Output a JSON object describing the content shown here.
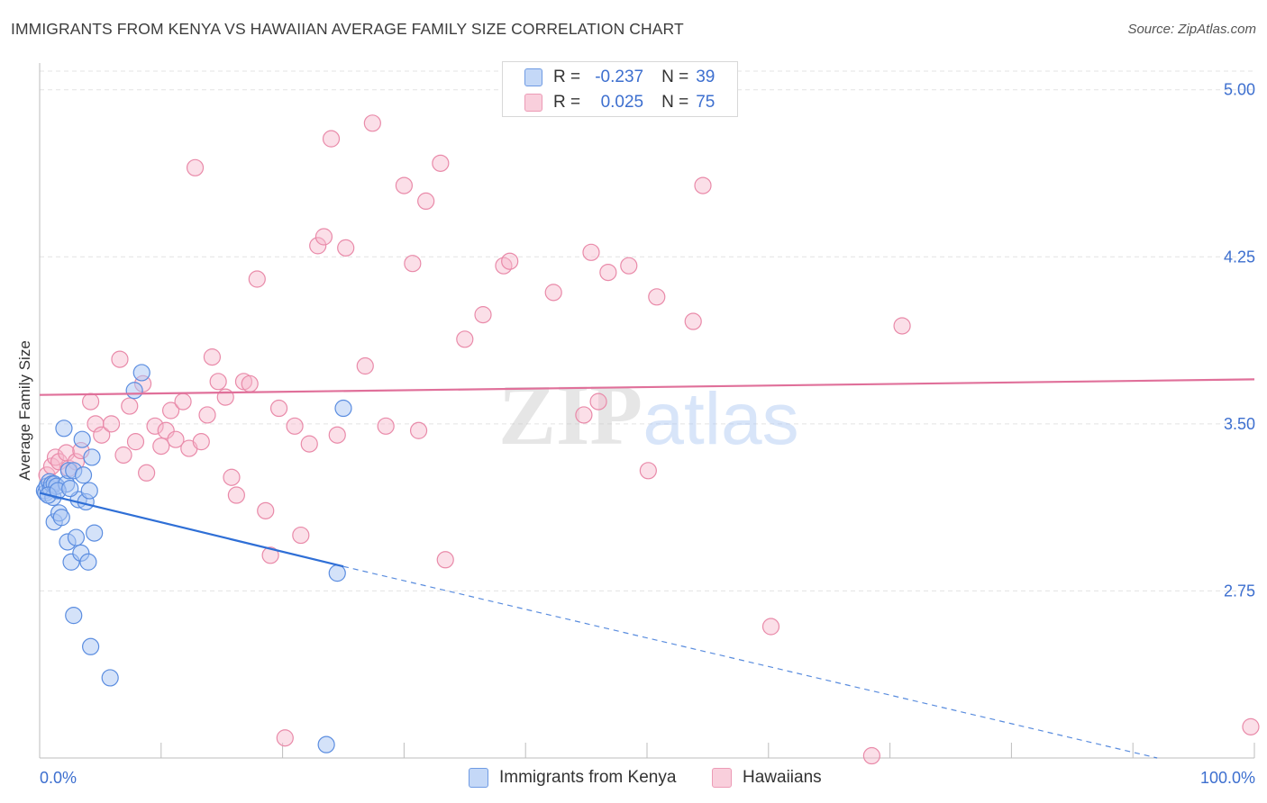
{
  "header": {
    "title": "IMMIGRANTS FROM KENYA VS HAWAIIAN AVERAGE FAMILY SIZE CORRELATION CHART",
    "source": "Source: ZipAtlas.com"
  },
  "watermark": {
    "zip": "ZIP",
    "atlas": "atlas"
  },
  "colors": {
    "kenya_fill": "#a9c6f3",
    "kenya_stroke": "#5b8de0",
    "kenya_line": "#2f6fd6",
    "hawaiian_fill": "#f6b8cc",
    "hawaiian_stroke": "#e98aa9",
    "hawaiian_line": "#e0709a",
    "tick_label": "#3d6fcf",
    "grid": "#e3e3e3"
  },
  "legend_top": {
    "rows": [
      {
        "r_label": "R =",
        "r_value": "-0.237",
        "n_label": "N =",
        "n_value": "39"
      },
      {
        "r_label": "R =",
        "r_value": "0.025",
        "n_label": "N =",
        "n_value": "75"
      }
    ]
  },
  "legend_bottom": {
    "items": [
      {
        "label": "Immigrants from Kenya"
      },
      {
        "label": "Hawaiians"
      }
    ]
  },
  "chart_data": {
    "type": "scatter",
    "title": "IMMIGRANTS FROM KENYA VS HAWAIIAN AVERAGE FAMILY SIZE CORRELATION CHART",
    "xlabel": "",
    "ylabel": "Average Family Size",
    "xlim": [
      0,
      100
    ],
    "ylim": [
      2.0,
      5.12
    ],
    "x_tick_labels": [
      "0.0%",
      "100.0%"
    ],
    "y_ticks": [
      2.75,
      3.5,
      4.25,
      5.0
    ],
    "y_tick_labels": [
      "2.75",
      "3.50",
      "4.25",
      "5.00"
    ],
    "grid": true,
    "legend_position": "top-center",
    "series": [
      {
        "name": "Immigrants from Kenya",
        "r": -0.237,
        "n": 39,
        "trend": {
          "x0": 0,
          "y0": 3.19,
          "x1": 25,
          "y1": 2.86,
          "dash_to_x": 92,
          "dash_to_y": 2.0
        },
        "points": [
          [
            0.4,
            3.2
          ],
          [
            0.5,
            3.19
          ],
          [
            0.6,
            3.22
          ],
          [
            0.8,
            3.24
          ],
          [
            0.9,
            3.21
          ],
          [
            1.0,
            3.23
          ],
          [
            1.1,
            3.17
          ],
          [
            1.2,
            3.23
          ],
          [
            1.2,
            3.06
          ],
          [
            1.4,
            3.22
          ],
          [
            1.6,
            3.1
          ],
          [
            1.8,
            3.08
          ],
          [
            2.0,
            3.48
          ],
          [
            2.2,
            3.23
          ],
          [
            2.3,
            2.97
          ],
          [
            2.4,
            3.29
          ],
          [
            2.6,
            2.88
          ],
          [
            2.8,
            3.29
          ],
          [
            2.8,
            2.64
          ],
          [
            3.0,
            2.99
          ],
          [
            3.2,
            3.16
          ],
          [
            3.4,
            2.92
          ],
          [
            3.5,
            3.43
          ],
          [
            3.6,
            3.27
          ],
          [
            3.8,
            3.15
          ],
          [
            4.1,
            3.2
          ],
          [
            4.3,
            3.35
          ],
          [
            4.2,
            2.5
          ],
          [
            4.0,
            2.88
          ],
          [
            4.5,
            3.01
          ],
          [
            5.8,
            2.36
          ],
          [
            7.8,
            3.65
          ],
          [
            8.4,
            3.73
          ],
          [
            24.5,
            2.83
          ],
          [
            25.0,
            3.57
          ],
          [
            23.6,
            2.06
          ],
          [
            0.7,
            3.18
          ],
          [
            1.5,
            3.2
          ],
          [
            2.5,
            3.21
          ]
        ]
      },
      {
        "name": "Hawaiians",
        "r": 0.025,
        "n": 75,
        "trend": {
          "x0": 0,
          "y0": 3.63,
          "x1": 100,
          "y1": 3.7
        },
        "points": [
          [
            0.6,
            3.27
          ],
          [
            1.0,
            3.31
          ],
          [
            1.3,
            3.35
          ],
          [
            1.6,
            3.33
          ],
          [
            2.2,
            3.37
          ],
          [
            2.4,
            3.3
          ],
          [
            3.0,
            3.33
          ],
          [
            3.4,
            3.38
          ],
          [
            4.2,
            3.6
          ],
          [
            4.6,
            3.5
          ],
          [
            5.1,
            3.45
          ],
          [
            5.9,
            3.5
          ],
          [
            6.6,
            3.79
          ],
          [
            6.9,
            3.36
          ],
          [
            7.4,
            3.58
          ],
          [
            7.9,
            3.42
          ],
          [
            8.5,
            3.68
          ],
          [
            8.8,
            3.28
          ],
          [
            9.5,
            3.49
          ],
          [
            10.0,
            3.4
          ],
          [
            10.4,
            3.47
          ],
          [
            10.8,
            3.56
          ],
          [
            11.2,
            3.43
          ],
          [
            11.8,
            3.6
          ],
          [
            12.3,
            3.39
          ],
          [
            12.8,
            4.65
          ],
          [
            13.3,
            3.42
          ],
          [
            13.8,
            3.54
          ],
          [
            14.2,
            3.8
          ],
          [
            14.7,
            3.69
          ],
          [
            15.3,
            3.62
          ],
          [
            15.8,
            3.26
          ],
          [
            16.2,
            3.18
          ],
          [
            16.8,
            3.69
          ],
          [
            17.3,
            3.68
          ],
          [
            17.9,
            4.15
          ],
          [
            18.6,
            3.11
          ],
          [
            19.0,
            2.91
          ],
          [
            19.7,
            3.57
          ],
          [
            20.2,
            2.09
          ],
          [
            21.0,
            3.49
          ],
          [
            21.5,
            3.0
          ],
          [
            22.2,
            3.41
          ],
          [
            22.9,
            4.3
          ],
          [
            23.4,
            4.34
          ],
          [
            24.0,
            4.78
          ],
          [
            24.5,
            3.45
          ],
          [
            25.2,
            4.29
          ],
          [
            26.8,
            3.76
          ],
          [
            27.4,
            4.85
          ],
          [
            28.5,
            3.49
          ],
          [
            30.0,
            4.57
          ],
          [
            30.7,
            4.22
          ],
          [
            31.2,
            3.47
          ],
          [
            31.8,
            4.5
          ],
          [
            33.0,
            4.67
          ],
          [
            33.4,
            2.89
          ],
          [
            35.0,
            3.88
          ],
          [
            36.5,
            3.99
          ],
          [
            38.2,
            4.21
          ],
          [
            38.7,
            4.23
          ],
          [
            42.3,
            4.09
          ],
          [
            44.8,
            3.54
          ],
          [
            45.4,
            4.27
          ],
          [
            46.8,
            4.18
          ],
          [
            48.5,
            4.21
          ],
          [
            50.1,
            3.29
          ],
          [
            50.8,
            4.07
          ],
          [
            53.8,
            3.96
          ],
          [
            54.6,
            4.57
          ],
          [
            60.2,
            2.59
          ],
          [
            68.5,
            2.01
          ],
          [
            71.0,
            3.94
          ],
          [
            99.7,
            2.14
          ],
          [
            46.0,
            3.6
          ]
        ]
      }
    ]
  }
}
